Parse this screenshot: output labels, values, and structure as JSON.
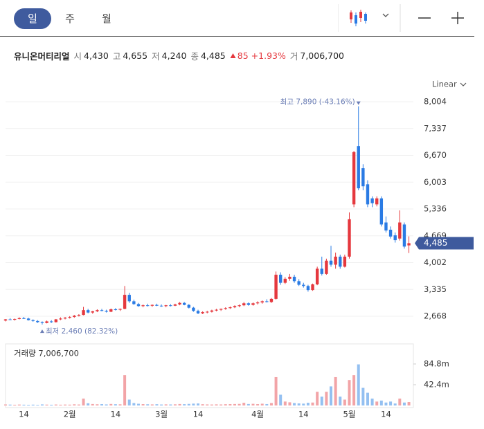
{
  "tabs": [
    "일",
    "주",
    "월"
  ],
  "info": {
    "name": "유니온머티리얼",
    "fields": [
      {
        "label": "시",
        "value": "4,430"
      },
      {
        "label": "고",
        "value": "4,655"
      },
      {
        "label": "저",
        "value": "4,240"
      },
      {
        "label": "종",
        "value": "4,485"
      }
    ],
    "change": "85",
    "change_pct": "+1.93%",
    "volume_label": "거",
    "volume": "7,006,700"
  },
  "chart_data": {
    "type": "candlestick",
    "scale_label": "Linear",
    "categories": [
      null,
      null,
      null,
      null,
      "14",
      null,
      null,
      null,
      null,
      null,
      null,
      null,
      null,
      null,
      "2월",
      null,
      null,
      null,
      null,
      null,
      null,
      null,
      null,
      null,
      "14",
      null,
      null,
      null,
      null,
      null,
      null,
      null,
      null,
      null,
      "3월",
      null,
      null,
      null,
      null,
      null,
      null,
      null,
      "14",
      null,
      null,
      null,
      null,
      null,
      null,
      null,
      null,
      null,
      null,
      null,
      null,
      "4월",
      null,
      null,
      null,
      null,
      null,
      null,
      null,
      null,
      null,
      "14",
      null,
      null,
      null,
      null,
      null,
      null,
      null,
      null,
      null,
      "5월",
      null,
      null,
      null,
      null,
      null,
      null,
      null,
      "14",
      null,
      null,
      null,
      null,
      null
    ],
    "open": [
      2560,
      2590,
      2580,
      2600,
      2620,
      2610,
      2570,
      2550,
      2520,
      2500,
      2540,
      2520,
      2590,
      2610,
      2630,
      2650,
      2680,
      2700,
      2820,
      2760,
      2790,
      2820,
      2800,
      2780,
      2840,
      2830,
      2850,
      3200,
      3040,
      2970,
      2920,
      2940,
      2930,
      2950,
      2930,
      2920,
      2940,
      2930,
      2960,
      3000,
      2950,
      2880,
      2800,
      2740,
      2770,
      2780,
      2810,
      2830,
      2850,
      2870,
      2890,
      2920,
      2940,
      2990,
      2950,
      2990,
      3010,
      3040,
      3020,
      3100,
      3700,
      3500,
      3600,
      3650,
      3540,
      3450,
      3420,
      3320,
      3460,
      3850,
      3720,
      4050,
      3950,
      4150,
      3900,
      4150,
      5450,
      6900,
      6350,
      5950,
      5600,
      5450,
      5600,
      5000,
      4820,
      4680,
      4600,
      4950,
      4430
    ],
    "high": [
      2600,
      2620,
      2610,
      2640,
      2650,
      2630,
      2590,
      2570,
      2540,
      2560,
      2570,
      2600,
      2640,
      2650,
      2670,
      2700,
      2720,
      2900,
      2850,
      2800,
      2840,
      2850,
      2830,
      2860,
      2870,
      2860,
      3420,
      3250,
      3080,
      3000,
      2960,
      2980,
      2960,
      2980,
      2960,
      2950,
      2970,
      2980,
      3020,
      3020,
      2970,
      2900,
      2830,
      2790,
      2800,
      2830,
      2850,
      2860,
      2890,
      2910,
      2940,
      2960,
      3020,
      3010,
      3010,
      3040,
      3060,
      3090,
      3120,
      3780,
      3760,
      3640,
      3720,
      3700,
      3590,
      3500,
      3450,
      3480,
      3900,
      4150,
      4100,
      4420,
      4250,
      4200,
      4200,
      5250,
      6780,
      7890,
      6450,
      6050,
      5650,
      5650,
      5650,
      5150,
      4900,
      4750,
      5300,
      5000,
      4655
    ],
    "low": [
      2540,
      2570,
      2560,
      2590,
      2600,
      2560,
      2530,
      2500,
      2460,
      2490,
      2500,
      2510,
      2570,
      2590,
      2610,
      2630,
      2660,
      2690,
      2740,
      2730,
      2770,
      2790,
      2760,
      2770,
      2810,
      2800,
      2840,
      3000,
      2950,
      2900,
      2890,
      2910,
      2900,
      2920,
      2900,
      2890,
      2910,
      2920,
      2940,
      2940,
      2860,
      2780,
      2720,
      2720,
      2740,
      2760,
      2790,
      2800,
      2830,
      2850,
      2870,
      2890,
      2920,
      2930,
      2930,
      2960,
      2980,
      3010,
      3000,
      3080,
      3450,
      3470,
      3550,
      3500,
      3420,
      3380,
      3280,
      3300,
      3440,
      3680,
      3700,
      3900,
      3850,
      3850,
      3880,
      4100,
      5380,
      5800,
      5800,
      5380,
      5380,
      5400,
      4900,
      4750,
      4600,
      4500,
      4550,
      4350,
      4240
    ],
    "close": [
      2590,
      2580,
      2600,
      2620,
      2610,
      2570,
      2550,
      2520,
      2500,
      2540,
      2520,
      2590,
      2610,
      2630,
      2650,
      2680,
      2700,
      2820,
      2760,
      2790,
      2820,
      2800,
      2780,
      2840,
      2830,
      2850,
      3200,
      3040,
      2970,
      2920,
      2940,
      2930,
      2950,
      2930,
      2920,
      2940,
      2930,
      2960,
      3000,
      2950,
      2880,
      2800,
      2740,
      2770,
      2780,
      2810,
      2830,
      2850,
      2870,
      2890,
      2920,
      2940,
      2990,
      2950,
      2990,
      3010,
      3040,
      3020,
      3100,
      3700,
      3500,
      3600,
      3650,
      3540,
      3450,
      3420,
      3320,
      3460,
      3850,
      3720,
      4050,
      3950,
      4150,
      3900,
      4150,
      5080,
      6750,
      5850,
      5900,
      5450,
      5480,
      5600,
      4950,
      4800,
      4650,
      4560,
      5000,
      4400,
      4485
    ],
    "volume": [
      2.1,
      1.8,
      1.5,
      1.9,
      1.6,
      1.4,
      1.7,
      1.3,
      2.2,
      1.8,
      1.5,
      2.0,
      1.6,
      1.9,
      1.7,
      2.4,
      2.0,
      14.0,
      4.5,
      3.0,
      2.5,
      2.8,
      2.2,
      3.1,
      2.6,
      2.4,
      62.0,
      12.0,
      5.0,
      3.5,
      2.8,
      2.5,
      2.2,
      2.6,
      2.0,
      2.3,
      2.1,
      2.4,
      3.0,
      2.7,
      3.2,
      3.8,
      4.1,
      2.6,
      2.2,
      2.0,
      2.3,
      2.1,
      2.6,
      2.8,
      3.0,
      3.2,
      5.5,
      3.0,
      3.4,
      2.8,
      3.6,
      2.9,
      5.0,
      58.0,
      22.0,
      8.0,
      6.5,
      5.0,
      4.2,
      3.8,
      5.5,
      6.0,
      28.0,
      18.0,
      28.0,
      39.0,
      58.0,
      18.0,
      12.0,
      52.0,
      62.0,
      84.0,
      36.0,
      26.0,
      14.0,
      8.0,
      10.0,
      6.0,
      8.0,
      4.0,
      14.0,
      6.0,
      7.0067
    ],
    "ylim": [
      2100,
      8641
    ],
    "yticks": [
      {
        "value": 2668,
        "label": "2,668"
      },
      {
        "value": 3335,
        "label": "3,335"
      },
      {
        "value": 4002,
        "label": "4,002"
      },
      {
        "value": 4669,
        "label": "4,669"
      },
      {
        "value": 5336,
        "label": "5,336"
      },
      {
        "value": 6003,
        "label": "6,003"
      },
      {
        "value": 6670,
        "label": "6,670"
      },
      {
        "value": 7337,
        "label": "7,337"
      },
      {
        "value": 8004,
        "label": "8,004"
      }
    ],
    "volume_ylim": [
      0,
      125.8
    ],
    "volume_ticks": [
      {
        "value": 42.4,
        "label": "42.4m"
      },
      {
        "value": 84.8,
        "label": "84.8m"
      }
    ],
    "volume_legend": "거래량 7,006,700",
    "max_annotation": {
      "index": 77,
      "label": "최고 7,890 (-43.16%)"
    },
    "min_annotation": {
      "index": 8,
      "label": "최저 2,460 (82.32%)"
    },
    "last_price": {
      "value": 4485,
      "label": "4,485"
    },
    "grid": true,
    "up_color": "#e5383e",
    "down_color": "#2a7be4",
    "volume_up_color": "#f2a4a7",
    "volume_down_color": "#94c0f1",
    "annotation_color": "#6a7db5",
    "price_tag_color": "#3e5a9d"
  }
}
